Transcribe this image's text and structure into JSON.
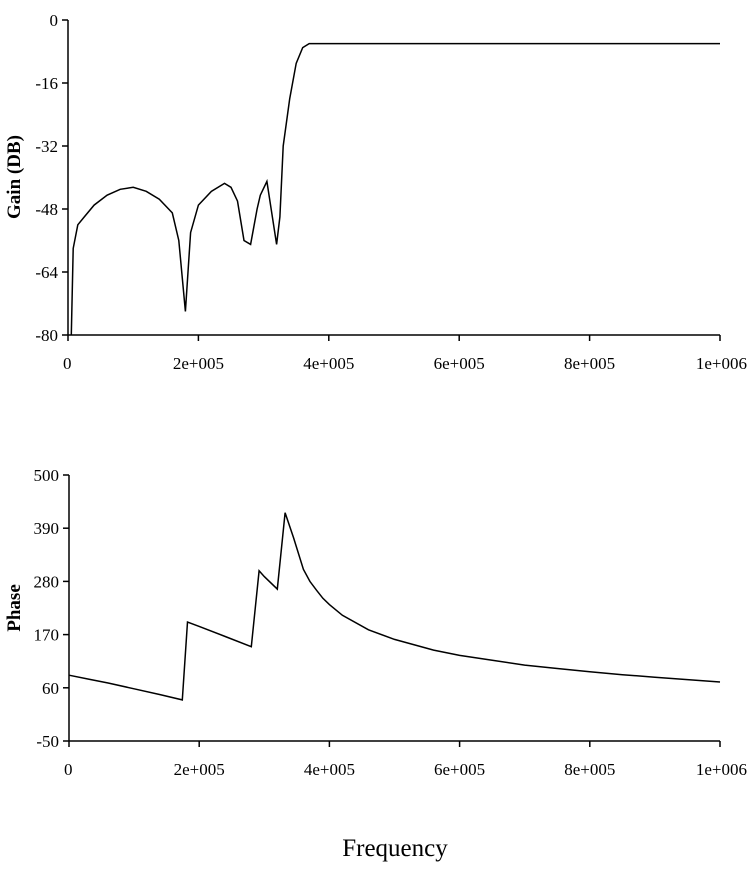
{
  "chart_data": [
    {
      "type": "line",
      "title": "",
      "xlabel": "",
      "ylabel": "Gain (DB)",
      "xlim": [
        0,
        1000000
      ],
      "ylim": [
        -80,
        0
      ],
      "xticks": [
        "0",
        "2e+005",
        "4e+005",
        "6e+005",
        "8e+005",
        "1e+006"
      ],
      "yticks": [
        "0",
        "-16",
        "-32",
        "-48",
        "-64",
        "-80"
      ],
      "grid": false,
      "series": [
        {
          "values_x": [
            5000,
            8000,
            15000,
            25000,
            40000,
            60000,
            80000,
            100000,
            120000,
            140000,
            160000,
            170000,
            175000,
            180000,
            188000,
            200000,
            220000,
            240000,
            250000,
            260000,
            270000,
            280000,
            290000,
            295000,
            305000,
            320000,
            325000,
            330000,
            340000,
            350000,
            360000,
            370000,
            400000,
            500000,
            600000,
            700000,
            800000,
            900000,
            1000000
          ],
          "values_y": [
            -80,
            -58,
            -52,
            -50,
            -47,
            -44.5,
            -43,
            -42.5,
            -43.5,
            -45.5,
            -49,
            -56,
            -65,
            -74,
            -54,
            -47,
            -43.5,
            -41.5,
            -42.5,
            -46,
            -56,
            -57,
            -48,
            -44.5,
            -41,
            -57,
            -50,
            -32,
            -20,
            -11,
            -7,
            -6,
            -6,
            -6,
            -6,
            -6,
            -6,
            -6,
            -6
          ]
        }
      ]
    },
    {
      "type": "line",
      "title": "",
      "xlabel": "Frequency",
      "ylabel": "Phase",
      "xlim": [
        0,
        1000000
      ],
      "ylim": [
        -50,
        500
      ],
      "xticks": [
        "0",
        "2e+005",
        "4e+005",
        "6e+005",
        "8e+005",
        "1e+006"
      ],
      "yticks": [
        "500",
        "390",
        "280",
        "170",
        "60",
        "-50"
      ],
      "grid": false,
      "series": [
        {
          "values_x": [
            0,
            30000,
            60000,
            100000,
            140000,
            174000,
            182000,
            200000,
            240000,
            280000,
            292000,
            300000,
            320000,
            332000,
            345000,
            360000,
            370000,
            380000,
            390000,
            400000,
            420000,
            460000,
            500000,
            560000,
            600000,
            650000,
            700000,
            750000,
            800000,
            850000,
            900000,
            950000,
            1000000
          ],
          "values_y": [
            86,
            78,
            70,
            58,
            46,
            35,
            196,
            187,
            166,
            145,
            302,
            290,
            264,
            422,
            370,
            305,
            280,
            262,
            245,
            232,
            210,
            180,
            160,
            138,
            127,
            117,
            107,
            100,
            93,
            87,
            82,
            77,
            72
          ]
        }
      ]
    }
  ]
}
